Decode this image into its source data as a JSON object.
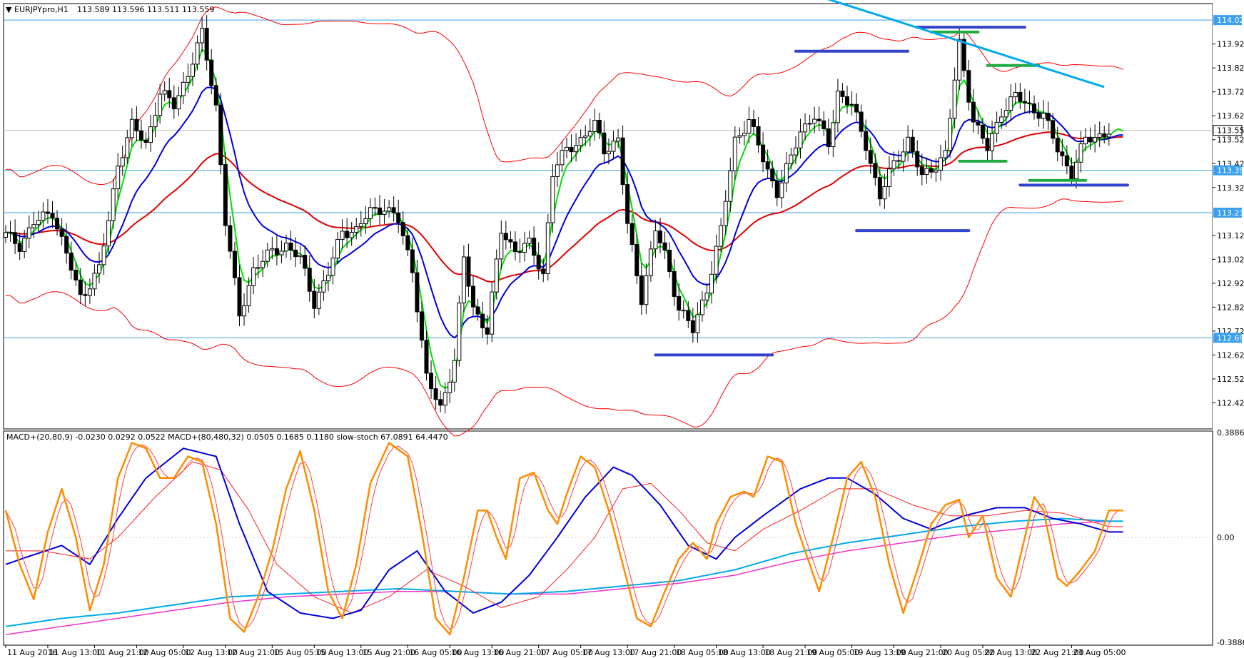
{
  "window": {
    "symbol_caption": "EURJPYpro,H1",
    "ohlc_caption": "113.589 113.596 113.511 113.559",
    "indicator_caption": "MACD+(20,80,9) -0.0230 0.0292 0.0522   MACD+(80,480,32) 0.0505 0.1685 0.1180   slow-stoch 67.0891 64.4470"
  },
  "colors": {
    "candle": "#000000",
    "upper_band": "#ff0000",
    "lower_band": "#ff0000",
    "slow_ma": "#e00000",
    "fast_ma": "#00e000",
    "mid_ma": "#0000e0",
    "trendline": "#00aaee",
    "hline": "#3aa0ee",
    "zone_blue": "#3344cc",
    "zone_green": "#22aa44",
    "stoch_main": "#ff8c00",
    "stoch_signal": "#ff4040",
    "macd_fast": "#0000dd",
    "macd_fast_signal": "#ff2020",
    "macd_slow": "#00aaee",
    "macd_slow_signal": "#ee33cc",
    "tag_bg": "#3aa0ee"
  },
  "chart_data": [
    {
      "type": "candlestick",
      "title": "EURJPYpro,H1",
      "ylim": [
        112.32,
        114.08
      ],
      "price_axis_ticks": [
        "113.920",
        "113.820",
        "113.720",
        "113.620",
        "113.520",
        "113.420",
        "113.320",
        "113.120",
        "113.020",
        "112.920",
        "112.820",
        "112.720",
        "112.620",
        "112.520",
        "112.420"
      ],
      "current_price": "113.559",
      "horizontal_levels": [
        {
          "label": "114.020",
          "value": 114.02
        },
        {
          "label": "113.392",
          "value": 113.392
        },
        {
          "label": "113.215",
          "value": 113.215
        },
        {
          "label": "112.692",
          "value": 112.692
        }
      ],
      "close_path": [
        [
          0,
          113.12
        ],
        [
          3,
          113.08
        ],
        [
          6,
          113.17
        ],
        [
          10,
          113.22
        ],
        [
          13,
          113.04
        ],
        [
          16,
          112.86
        ],
        [
          20,
          112.98
        ],
        [
          22,
          113.18
        ],
        [
          24,
          113.42
        ],
        [
          27,
          113.58
        ],
        [
          30,
          113.5
        ],
        [
          33,
          113.72
        ],
        [
          36,
          113.66
        ],
        [
          39,
          113.8
        ],
        [
          42,
          113.96
        ],
        [
          45,
          113.66
        ],
        [
          47,
          113.18
        ],
        [
          50,
          112.78
        ],
        [
          53,
          112.98
        ],
        [
          57,
          113.05
        ],
        [
          60,
          113.08
        ],
        [
          63,
          113.02
        ],
        [
          66,
          112.84
        ],
        [
          69,
          112.96
        ],
        [
          72,
          113.14
        ],
        [
          75,
          113.14
        ],
        [
          78,
          113.22
        ],
        [
          81,
          113.24
        ],
        [
          84,
          113.18
        ],
        [
          87,
          112.98
        ],
        [
          90,
          112.52
        ],
        [
          93,
          112.4
        ],
        [
          96,
          112.6
        ],
        [
          98,
          113.02
        ],
        [
          100,
          112.82
        ],
        [
          103,
          112.72
        ],
        [
          106,
          113.14
        ],
        [
          109,
          113.06
        ],
        [
          112,
          113.08
        ],
        [
          115,
          112.96
        ],
        [
          117,
          113.38
        ],
        [
          120,
          113.48
        ],
        [
          123,
          113.52
        ],
        [
          126,
          113.58
        ],
        [
          128,
          113.48
        ],
        [
          131,
          113.52
        ],
        [
          133,
          113.16
        ],
        [
          136,
          112.86
        ],
        [
          139,
          113.14
        ],
        [
          141,
          113.04
        ],
        [
          144,
          112.82
        ],
        [
          147,
          112.72
        ],
        [
          150,
          112.9
        ],
        [
          153,
          113.14
        ],
        [
          156,
          113.52
        ],
        [
          159,
          113.6
        ],
        [
          162,
          113.44
        ],
        [
          165,
          113.3
        ],
        [
          168,
          113.44
        ],
        [
          170,
          113.56
        ],
        [
          173,
          113.62
        ],
        [
          176,
          113.5
        ],
        [
          178,
          113.72
        ],
        [
          181,
          113.66
        ],
        [
          184,
          113.5
        ],
        [
          187,
          113.28
        ],
        [
          190,
          113.42
        ],
        [
          193,
          113.52
        ],
        [
          196,
          113.36
        ],
        [
          199,
          113.42
        ],
        [
          201,
          113.46
        ],
        [
          204,
          113.92
        ],
        [
          207,
          113.6
        ],
        [
          210,
          113.48
        ],
        [
          213,
          113.64
        ],
        [
          216,
          113.7
        ],
        [
          219,
          113.66
        ],
        [
          222,
          113.62
        ],
        [
          225,
          113.48
        ],
        [
          228,
          113.38
        ],
        [
          231,
          113.52
        ],
        [
          234,
          113.54
        ],
        [
          237,
          113.56
        ]
      ],
      "x_tick_labels": [
        {
          "label": "11 Aug 2016",
          "bar": 0
        },
        {
          "label": "11 Aug 13:00",
          "bar": 9
        },
        {
          "label": "11 Aug 21:00",
          "bar": 19
        },
        {
          "label": "12 Aug 05:00",
          "bar": 28
        },
        {
          "label": "12 Aug 13:00",
          "bar": 38
        },
        {
          "label": "12 Aug 21:00",
          "bar": 47
        },
        {
          "label": "15 Aug 05:00",
          "bar": 57
        },
        {
          "label": "15 Aug 13:00",
          "bar": 66
        },
        {
          "label": "15 Aug 21:00",
          "bar": 76
        },
        {
          "label": "16 Aug 05:00",
          "bar": 86
        },
        {
          "label": "16 Aug 13:00",
          "bar": 95
        },
        {
          "label": "16 Aug 21:00",
          "bar": 104
        },
        {
          "label": "17 Aug 05:00",
          "bar": 114
        },
        {
          "label": "17 Aug 13:00",
          "bar": 123
        },
        {
          "label": "17 Aug 21:00",
          "bar": 133
        },
        {
          "label": "18 Aug 05:00",
          "bar": 143
        },
        {
          "label": "18 Aug 13:00",
          "bar": 152
        },
        {
          "label": "18 Aug 21:00",
          "bar": 162
        },
        {
          "label": "19 Aug 05:00",
          "bar": 171
        },
        {
          "label": "19 Aug 13:00",
          "bar": 181
        },
        {
          "label": "19 Aug 21:00",
          "bar": 190
        },
        {
          "label": "20 Aug 05:00",
          "bar": 200
        },
        {
          "label": "22 Aug 13:00",
          "bar": 209
        },
        {
          "label": "22 Aug 21:00",
          "bar": 219
        },
        {
          "label": "23 Aug 05:00",
          "bar": 228
        }
      ],
      "zones": [
        {
          "color": "blue",
          "from_bar": 169,
          "to_bar": 193,
          "price": 113.89
        },
        {
          "color": "blue",
          "from_bar": 195,
          "to_bar": 218,
          "price": 113.99
        },
        {
          "color": "green",
          "from_bar": 198,
          "to_bar": 208,
          "price": 113.97
        },
        {
          "color": "green",
          "from_bar": 210,
          "to_bar": 221,
          "price": 113.83
        },
        {
          "color": "green",
          "from_bar": 204,
          "to_bar": 214,
          "price": 113.43
        },
        {
          "color": "green",
          "from_bar": 219,
          "to_bar": 231,
          "price": 113.35
        },
        {
          "color": "blue",
          "from_bar": 217,
          "to_bar": 240,
          "price": 113.33
        },
        {
          "color": "blue",
          "from_bar": 182,
          "to_bar": 206,
          "price": 113.14
        },
        {
          "color": "blue",
          "from_bar": 139,
          "to_bar": 164,
          "price": 112.62
        }
      ],
      "trendline": {
        "from_bar": 161,
        "from_price": 114.2,
        "to_bar": 235,
        "to_price": 113.74
      }
    },
    {
      "type": "line",
      "title": "MACD+(20,80,9)  MACD+(80,480,32)  slow-stoch",
      "ylim": [
        -0.3886,
        0.3886
      ],
      "axis_ticks": [
        "0.3886",
        "0.00",
        "-0.3886"
      ],
      "stoch_path": [
        [
          0,
          0.1
        ],
        [
          3,
          -0.1
        ],
        [
          6,
          -0.23
        ],
        [
          9,
          0.02
        ],
        [
          12,
          0.18
        ],
        [
          15,
          0.0
        ],
        [
          18,
          -0.27
        ],
        [
          21,
          -0.1
        ],
        [
          24,
          0.22
        ],
        [
          27,
          0.35
        ],
        [
          30,
          0.33
        ],
        [
          33,
          0.22
        ],
        [
          36,
          0.22
        ],
        [
          39,
          0.3
        ],
        [
          42,
          0.28
        ],
        [
          45,
          0.05
        ],
        [
          48,
          -0.3
        ],
        [
          51,
          -0.35
        ],
        [
          54,
          -0.22
        ],
        [
          57,
          -0.05
        ],
        [
          60,
          0.18
        ],
        [
          63,
          0.32
        ],
        [
          66,
          0.1
        ],
        [
          69,
          -0.2
        ],
        [
          72,
          -0.3
        ],
        [
          75,
          -0.1
        ],
        [
          78,
          0.2
        ],
        [
          82,
          0.35
        ],
        [
          86,
          0.3
        ],
        [
          89,
          0.02
        ],
        [
          92,
          -0.3
        ],
        [
          95,
          -0.36
        ],
        [
          98,
          -0.15
        ],
        [
          101,
          0.1
        ],
        [
          103,
          0.1
        ],
        [
          105,
          0.0
        ],
        [
          107,
          -0.08
        ],
        [
          110,
          0.22
        ],
        [
          113,
          0.24
        ],
        [
          116,
          0.1
        ],
        [
          118,
          0.05
        ],
        [
          120,
          0.16
        ],
        [
          123,
          0.3
        ],
        [
          126,
          0.26
        ],
        [
          129,
          0.1
        ],
        [
          132,
          -0.1
        ],
        [
          135,
          -0.3
        ],
        [
          138,
          -0.33
        ],
        [
          141,
          -0.2
        ],
        [
          144,
          -0.08
        ],
        [
          147,
          -0.02
        ],
        [
          150,
          -0.08
        ],
        [
          152,
          0.05
        ],
        [
          155,
          0.15
        ],
        [
          158,
          0.17
        ],
        [
          160,
          0.15
        ],
        [
          163,
          0.3
        ],
        [
          166,
          0.28
        ],
        [
          169,
          0.05
        ],
        [
          172,
          -0.1
        ],
        [
          174,
          -0.2
        ],
        [
          177,
          0.0
        ],
        [
          180,
          0.22
        ],
        [
          183,
          0.28
        ],
        [
          186,
          0.15
        ],
        [
          189,
          -0.1
        ],
        [
          192,
          -0.28
        ],
        [
          195,
          -0.12
        ],
        [
          198,
          0.05
        ],
        [
          201,
          0.12
        ],
        [
          204,
          0.14
        ],
        [
          206,
          0.0
        ],
        [
          209,
          0.08
        ],
        [
          212,
          -0.15
        ],
        [
          215,
          -0.22
        ],
        [
          218,
          0.0
        ],
        [
          220,
          0.15
        ],
        [
          222,
          0.1
        ],
        [
          225,
          -0.15
        ],
        [
          227,
          -0.18
        ],
        [
          230,
          -0.12
        ],
        [
          233,
          -0.05
        ],
        [
          236,
          0.1
        ]
      ],
      "macd_fast_path": [
        [
          0,
          -0.1
        ],
        [
          5,
          -0.07
        ],
        [
          12,
          -0.03
        ],
        [
          18,
          -0.1
        ],
        [
          24,
          0.07
        ],
        [
          30,
          0.22
        ],
        [
          38,
          0.33
        ],
        [
          45,
          0.3
        ],
        [
          50,
          0.05
        ],
        [
          56,
          -0.2
        ],
        [
          63,
          -0.28
        ],
        [
          70,
          -0.3
        ],
        [
          76,
          -0.27
        ],
        [
          82,
          -0.12
        ],
        [
          88,
          -0.05
        ],
        [
          94,
          -0.2
        ],
        [
          100,
          -0.28
        ],
        [
          106,
          -0.24
        ],
        [
          112,
          -0.14
        ],
        [
          118,
          0.0
        ],
        [
          124,
          0.15
        ],
        [
          130,
          0.26
        ],
        [
          134,
          0.23
        ],
        [
          140,
          0.12
        ],
        [
          146,
          -0.03
        ],
        [
          152,
          -0.08
        ],
        [
          156,
          0.0
        ],
        [
          162,
          0.08
        ],
        [
          170,
          0.18
        ],
        [
          176,
          0.22
        ],
        [
          180,
          0.22
        ],
        [
          186,
          0.16
        ],
        [
          192,
          0.07
        ],
        [
          198,
          0.03
        ],
        [
          205,
          0.08
        ],
        [
          212,
          0.11
        ],
        [
          218,
          0.11
        ],
        [
          224,
          0.07
        ],
        [
          230,
          0.05
        ],
        [
          236,
          0.02
        ]
      ],
      "macd_fast_signal_path": [
        [
          0,
          -0.05
        ],
        [
          8,
          -0.05
        ],
        [
          18,
          -0.08
        ],
        [
          24,
          0.0
        ],
        [
          32,
          0.15
        ],
        [
          40,
          0.28
        ],
        [
          46,
          0.25
        ],
        [
          52,
          0.1
        ],
        [
          58,
          -0.1
        ],
        [
          66,
          -0.22
        ],
        [
          74,
          -0.28
        ],
        [
          82,
          -0.22
        ],
        [
          90,
          -0.12
        ],
        [
          98,
          -0.18
        ],
        [
          106,
          -0.26
        ],
        [
          114,
          -0.22
        ],
        [
          120,
          -0.12
        ],
        [
          126,
          0.0
        ],
        [
          132,
          0.18
        ],
        [
          138,
          0.2
        ],
        [
          144,
          0.1
        ],
        [
          150,
          -0.02
        ],
        [
          156,
          -0.05
        ],
        [
          162,
          0.03
        ],
        [
          170,
          0.1
        ],
        [
          178,
          0.18
        ],
        [
          186,
          0.18
        ],
        [
          194,
          0.12
        ],
        [
          202,
          0.08
        ],
        [
          210,
          0.08
        ],
        [
          218,
          0.1
        ],
        [
          226,
          0.09
        ],
        [
          232,
          0.06
        ],
        [
          236,
          0.04
        ]
      ],
      "macd_slow_path": [
        [
          0,
          -0.33
        ],
        [
          12,
          -0.3
        ],
        [
          24,
          -0.28
        ],
        [
          36,
          -0.25
        ],
        [
          48,
          -0.22
        ],
        [
          60,
          -0.21
        ],
        [
          72,
          -0.2
        ],
        [
          84,
          -0.19
        ],
        [
          96,
          -0.2
        ],
        [
          108,
          -0.21
        ],
        [
          120,
          -0.2
        ],
        [
          132,
          -0.18
        ],
        [
          144,
          -0.16
        ],
        [
          156,
          -0.12
        ],
        [
          168,
          -0.06
        ],
        [
          180,
          -0.02
        ],
        [
          192,
          0.01
        ],
        [
          204,
          0.04
        ],
        [
          216,
          0.06
        ],
        [
          226,
          0.07
        ],
        [
          236,
          0.06
        ]
      ],
      "macd_slow_signal_path": [
        [
          0,
          -0.36
        ],
        [
          12,
          -0.33
        ],
        [
          24,
          -0.3
        ],
        [
          36,
          -0.27
        ],
        [
          48,
          -0.24
        ],
        [
          60,
          -0.22
        ],
        [
          72,
          -0.21
        ],
        [
          84,
          -0.2
        ],
        [
          96,
          -0.2
        ],
        [
          108,
          -0.21
        ],
        [
          120,
          -0.21
        ],
        [
          132,
          -0.19
        ],
        [
          144,
          -0.17
        ],
        [
          156,
          -0.14
        ],
        [
          168,
          -0.09
        ],
        [
          180,
          -0.05
        ],
        [
          192,
          -0.02
        ],
        [
          204,
          0.01
        ],
        [
          216,
          0.03
        ],
        [
          226,
          0.05
        ],
        [
          236,
          0.06
        ]
      ]
    }
  ]
}
